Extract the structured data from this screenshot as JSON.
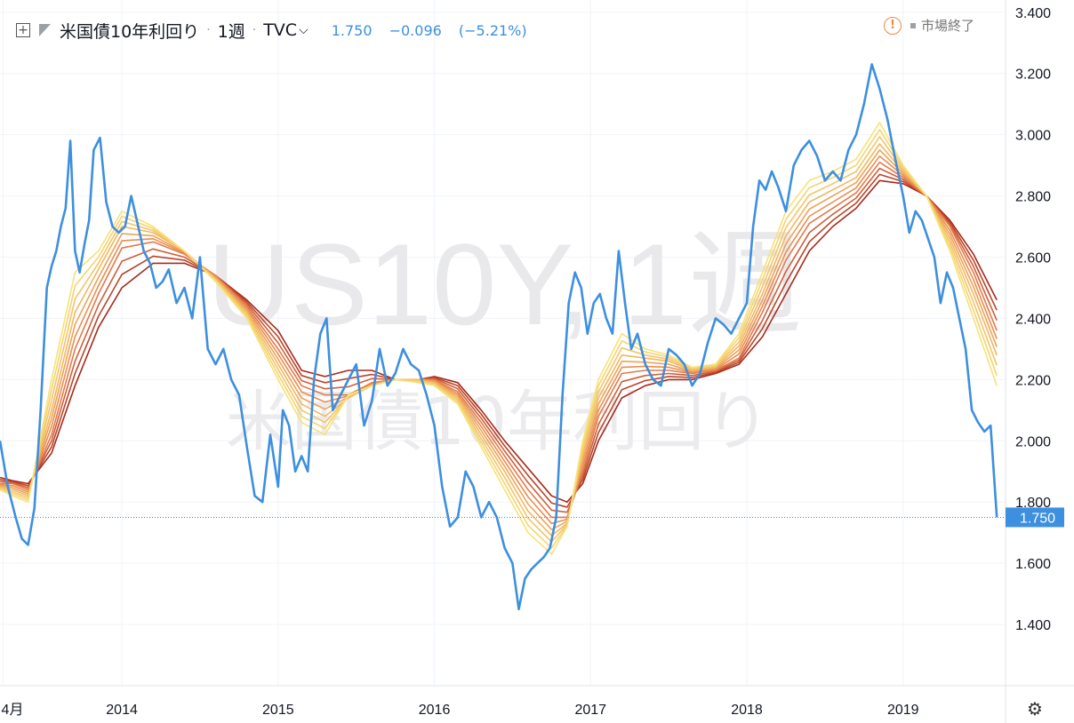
{
  "legend": {
    "symbol_title": "米国債10年利回り",
    "interval": "1週",
    "source": "TVC",
    "last": "1.750",
    "change": "−0.096",
    "change_pct": "(−5.21%)"
  },
  "market_status": "市場終了",
  "icons": {
    "add": "plus-square-icon",
    "flag": "flag-icon",
    "warning": "warning-icon",
    "settings": "gear-icon"
  },
  "colors": {
    "price": "#3d8fe0",
    "ribbon_fast": "#f6e27a",
    "ribbon_slow": "#a52a1a",
    "last_price_bg": "#3d8fe0"
  },
  "watermark": {
    "symbol": "US10Y, 1週",
    "name": "米国債10年利回り"
  },
  "chart_data": {
    "type": "line",
    "title": "米国債10年利回り",
    "x_ticks": [
      "4月",
      "2014",
      "2015",
      "2016",
      "2017",
      "2018",
      "2019"
    ],
    "y_ticks": [
      "1.400",
      "1.600",
      "1.800",
      "2.000",
      "2.200",
      "2.400",
      "2.600",
      "2.800",
      "3.000",
      "3.200",
      "3.400"
    ],
    "ylim": [
      1.2,
      3.44
    ],
    "xlim": [
      2013.22,
      2019.65
    ],
    "last_price_label": "1.750",
    "grid": true,
    "series": [
      {
        "role": "price",
        "color": "#3d8fe0",
        "x": [
          2013.22,
          2013.27,
          2013.32,
          2013.36,
          2013.4,
          2013.44,
          2013.48,
          2013.52,
          2013.55,
          2013.58,
          2013.61,
          2013.64,
          2013.67,
          2013.7,
          2013.73,
          2013.76,
          2013.79,
          2013.82,
          2013.86,
          2013.9,
          2013.94,
          2013.98,
          2014.02,
          2014.06,
          2014.1,
          2014.14,
          2014.18,
          2014.22,
          2014.26,
          2014.3,
          2014.35,
          2014.4,
          2014.45,
          2014.5,
          2014.55,
          2014.6,
          2014.65,
          2014.7,
          2014.75,
          2014.8,
          2014.85,
          2014.9,
          2014.95,
          2015.0,
          2015.03,
          2015.07,
          2015.11,
          2015.15,
          2015.19,
          2015.23,
          2015.27,
          2015.31,
          2015.35,
          2015.4,
          2015.45,
          2015.5,
          2015.55,
          2015.6,
          2015.65,
          2015.7,
          2015.75,
          2015.8,
          2015.85,
          2015.9,
          2015.95,
          2016.0,
          2016.05,
          2016.1,
          2016.15,
          2016.2,
          2016.25,
          2016.3,
          2016.35,
          2016.4,
          2016.45,
          2016.5,
          2016.54,
          2016.58,
          2016.62,
          2016.66,
          2016.7,
          2016.74,
          2016.78,
          2016.82,
          2016.86,
          2016.9,
          2016.94,
          2016.98,
          2017.02,
          2017.06,
          2017.1,
          2017.14,
          2017.18,
          2017.22,
          2017.26,
          2017.3,
          2017.35,
          2017.4,
          2017.45,
          2017.5,
          2017.55,
          2017.6,
          2017.65,
          2017.7,
          2017.75,
          2017.8,
          2017.85,
          2017.9,
          2017.95,
          2018.0,
          2018.04,
          2018.08,
          2018.12,
          2018.16,
          2018.2,
          2018.25,
          2018.3,
          2018.35,
          2018.4,
          2018.45,
          2018.5,
          2018.55,
          2018.6,
          2018.65,
          2018.7,
          2018.75,
          2018.8,
          2018.85,
          2018.9,
          2018.95,
          2019.0,
          2019.04,
          2019.08,
          2019.12,
          2019.16,
          2019.2,
          2019.24,
          2019.28,
          2019.32,
          2019.36,
          2019.4,
          2019.44,
          2019.48,
          2019.52,
          2019.56,
          2019.6
        ],
        "y": [
          2.0,
          1.85,
          1.75,
          1.68,
          1.66,
          1.78,
          2.1,
          2.5,
          2.57,
          2.62,
          2.7,
          2.76,
          2.98,
          2.62,
          2.55,
          2.64,
          2.72,
          2.95,
          2.99,
          2.78,
          2.7,
          2.68,
          2.7,
          2.8,
          2.71,
          2.62,
          2.58,
          2.5,
          2.52,
          2.56,
          2.45,
          2.5,
          2.4,
          2.6,
          2.3,
          2.25,
          2.3,
          2.2,
          2.15,
          1.98,
          1.82,
          1.8,
          2.02,
          1.85,
          2.1,
          2.05,
          1.9,
          1.95,
          1.9,
          2.2,
          2.35,
          2.4,
          2.1,
          2.15,
          2.2,
          2.25,
          2.05,
          2.13,
          2.3,
          2.18,
          2.22,
          2.3,
          2.25,
          2.23,
          2.15,
          2.05,
          1.85,
          1.72,
          1.75,
          1.9,
          1.85,
          1.75,
          1.8,
          1.75,
          1.65,
          1.6,
          1.45,
          1.55,
          1.58,
          1.6,
          1.62,
          1.65,
          1.75,
          2.15,
          2.45,
          2.55,
          2.5,
          2.35,
          2.45,
          2.48,
          2.4,
          2.35,
          2.62,
          2.45,
          2.3,
          2.35,
          2.25,
          2.2,
          2.18,
          2.3,
          2.28,
          2.25,
          2.18,
          2.22,
          2.32,
          2.4,
          2.38,
          2.35,
          2.4,
          2.45,
          2.7,
          2.85,
          2.82,
          2.88,
          2.83,
          2.75,
          2.9,
          2.95,
          2.98,
          2.93,
          2.85,
          2.88,
          2.85,
          2.95,
          3.0,
          3.1,
          3.23,
          3.15,
          3.05,
          2.92,
          2.8,
          2.68,
          2.75,
          2.72,
          2.66,
          2.6,
          2.45,
          2.55,
          2.5,
          2.4,
          2.3,
          2.1,
          2.06,
          2.03,
          2.05,
          1.75
        ]
      },
      {
        "role": "ribbon-ma",
        "color": "#f6e27a",
        "x": [
          2013.22,
          2013.3,
          2013.4,
          2013.55,
          2013.7,
          2013.85,
          2014.0,
          2014.2,
          2014.4,
          2014.6,
          2014.8,
          2015.0,
          2015.15,
          2015.3,
          2015.45,
          2015.6,
          2015.75,
          2015.9,
          2016.0,
          2016.15,
          2016.3,
          2016.45,
          2016.6,
          2016.75,
          2016.85,
          2016.95,
          2017.05,
          2017.2,
          2017.35,
          2017.5,
          2017.65,
          2017.8,
          2017.95,
          2018.1,
          2018.25,
          2018.4,
          2018.55,
          2018.7,
          2018.85,
          2019.0,
          2019.15,
          2019.3,
          2019.45,
          2019.6
        ],
        "y": [
          1.84,
          1.82,
          1.8,
          2.2,
          2.55,
          2.62,
          2.75,
          2.7,
          2.62,
          2.52,
          2.4,
          2.2,
          2.06,
          2.02,
          2.15,
          2.18,
          2.2,
          2.19,
          2.18,
          2.12,
          1.98,
          1.84,
          1.7,
          1.63,
          1.72,
          2.0,
          2.2,
          2.35,
          2.3,
          2.28,
          2.24,
          2.25,
          2.35,
          2.55,
          2.75,
          2.85,
          2.88,
          2.92,
          3.04,
          2.9,
          2.8,
          2.62,
          2.4,
          2.18
        ]
      },
      {
        "role": "ribbon-ma",
        "color": "#f2b760",
        "x": [
          2013.22,
          2013.3,
          2013.4,
          2013.55,
          2013.7,
          2013.85,
          2014.0,
          2014.2,
          2014.4,
          2014.6,
          2014.8,
          2015.0,
          2015.15,
          2015.3,
          2015.45,
          2015.6,
          2015.75,
          2015.9,
          2016.0,
          2016.15,
          2016.3,
          2016.45,
          2016.6,
          2016.75,
          2016.85,
          2016.95,
          2017.05,
          2017.2,
          2017.35,
          2017.5,
          2017.65,
          2017.8,
          2017.95,
          2018.1,
          2018.25,
          2018.4,
          2018.55,
          2018.7,
          2018.85,
          2019.0,
          2019.15,
          2019.3,
          2019.45,
          2019.6
        ],
        "y": [
          1.85,
          1.84,
          1.82,
          2.1,
          2.42,
          2.56,
          2.7,
          2.68,
          2.62,
          2.53,
          2.42,
          2.25,
          2.12,
          2.08,
          2.14,
          2.18,
          2.2,
          2.2,
          2.19,
          2.14,
          2.02,
          1.9,
          1.77,
          1.69,
          1.73,
          1.95,
          2.14,
          2.28,
          2.27,
          2.26,
          2.23,
          2.24,
          2.31,
          2.48,
          2.67,
          2.78,
          2.82,
          2.86,
          2.97,
          2.88,
          2.8,
          2.66,
          2.48,
          2.28
        ]
      },
      {
        "role": "ribbon-ma",
        "color": "#e47a4a",
        "x": [
          2013.22,
          2013.3,
          2013.4,
          2013.55,
          2013.7,
          2013.85,
          2014.0,
          2014.2,
          2014.4,
          2014.6,
          2014.8,
          2015.0,
          2015.15,
          2015.3,
          2015.45,
          2015.6,
          2015.75,
          2015.9,
          2016.0,
          2016.15,
          2016.3,
          2016.45,
          2016.6,
          2016.75,
          2016.85,
          2016.95,
          2017.05,
          2017.2,
          2017.35,
          2017.5,
          2017.65,
          2017.8,
          2017.95,
          2018.1,
          2018.25,
          2018.4,
          2018.55,
          2018.7,
          2018.85,
          2019.0,
          2019.15,
          2019.3,
          2019.45,
          2019.6
        ],
        "y": [
          1.86,
          1.86,
          1.84,
          2.02,
          2.3,
          2.48,
          2.63,
          2.65,
          2.61,
          2.54,
          2.44,
          2.3,
          2.18,
          2.15,
          2.15,
          2.19,
          2.2,
          2.2,
          2.2,
          2.16,
          2.06,
          1.95,
          1.84,
          1.75,
          1.75,
          1.9,
          2.08,
          2.22,
          2.23,
          2.23,
          2.22,
          2.23,
          2.27,
          2.42,
          2.59,
          2.71,
          2.76,
          2.81,
          2.91,
          2.86,
          2.8,
          2.7,
          2.55,
          2.36
        ]
      },
      {
        "role": "ribbon-ma",
        "color": "#a52a1a",
        "x": [
          2013.22,
          2013.3,
          2013.4,
          2013.55,
          2013.7,
          2013.85,
          2014.0,
          2014.2,
          2014.4,
          2014.6,
          2014.8,
          2015.0,
          2015.15,
          2015.3,
          2015.45,
          2015.6,
          2015.75,
          2015.9,
          2016.0,
          2016.15,
          2016.3,
          2016.45,
          2016.6,
          2016.75,
          2016.85,
          2016.95,
          2017.05,
          2017.2,
          2017.35,
          2017.5,
          2017.65,
          2017.8,
          2017.95,
          2018.1,
          2018.25,
          2018.4,
          2018.55,
          2018.7,
          2018.85,
          2019.0,
          2019.15,
          2019.3,
          2019.45,
          2019.6
        ],
        "y": [
          1.88,
          1.87,
          1.86,
          1.96,
          2.18,
          2.37,
          2.5,
          2.58,
          2.58,
          2.54,
          2.46,
          2.36,
          2.23,
          2.21,
          2.23,
          2.23,
          2.2,
          2.2,
          2.21,
          2.19,
          2.1,
          2.0,
          1.91,
          1.82,
          1.8,
          1.86,
          2.0,
          2.14,
          2.18,
          2.2,
          2.2,
          2.22,
          2.25,
          2.34,
          2.48,
          2.62,
          2.7,
          2.76,
          2.85,
          2.84,
          2.8,
          2.72,
          2.61,
          2.46
        ]
      }
    ]
  }
}
